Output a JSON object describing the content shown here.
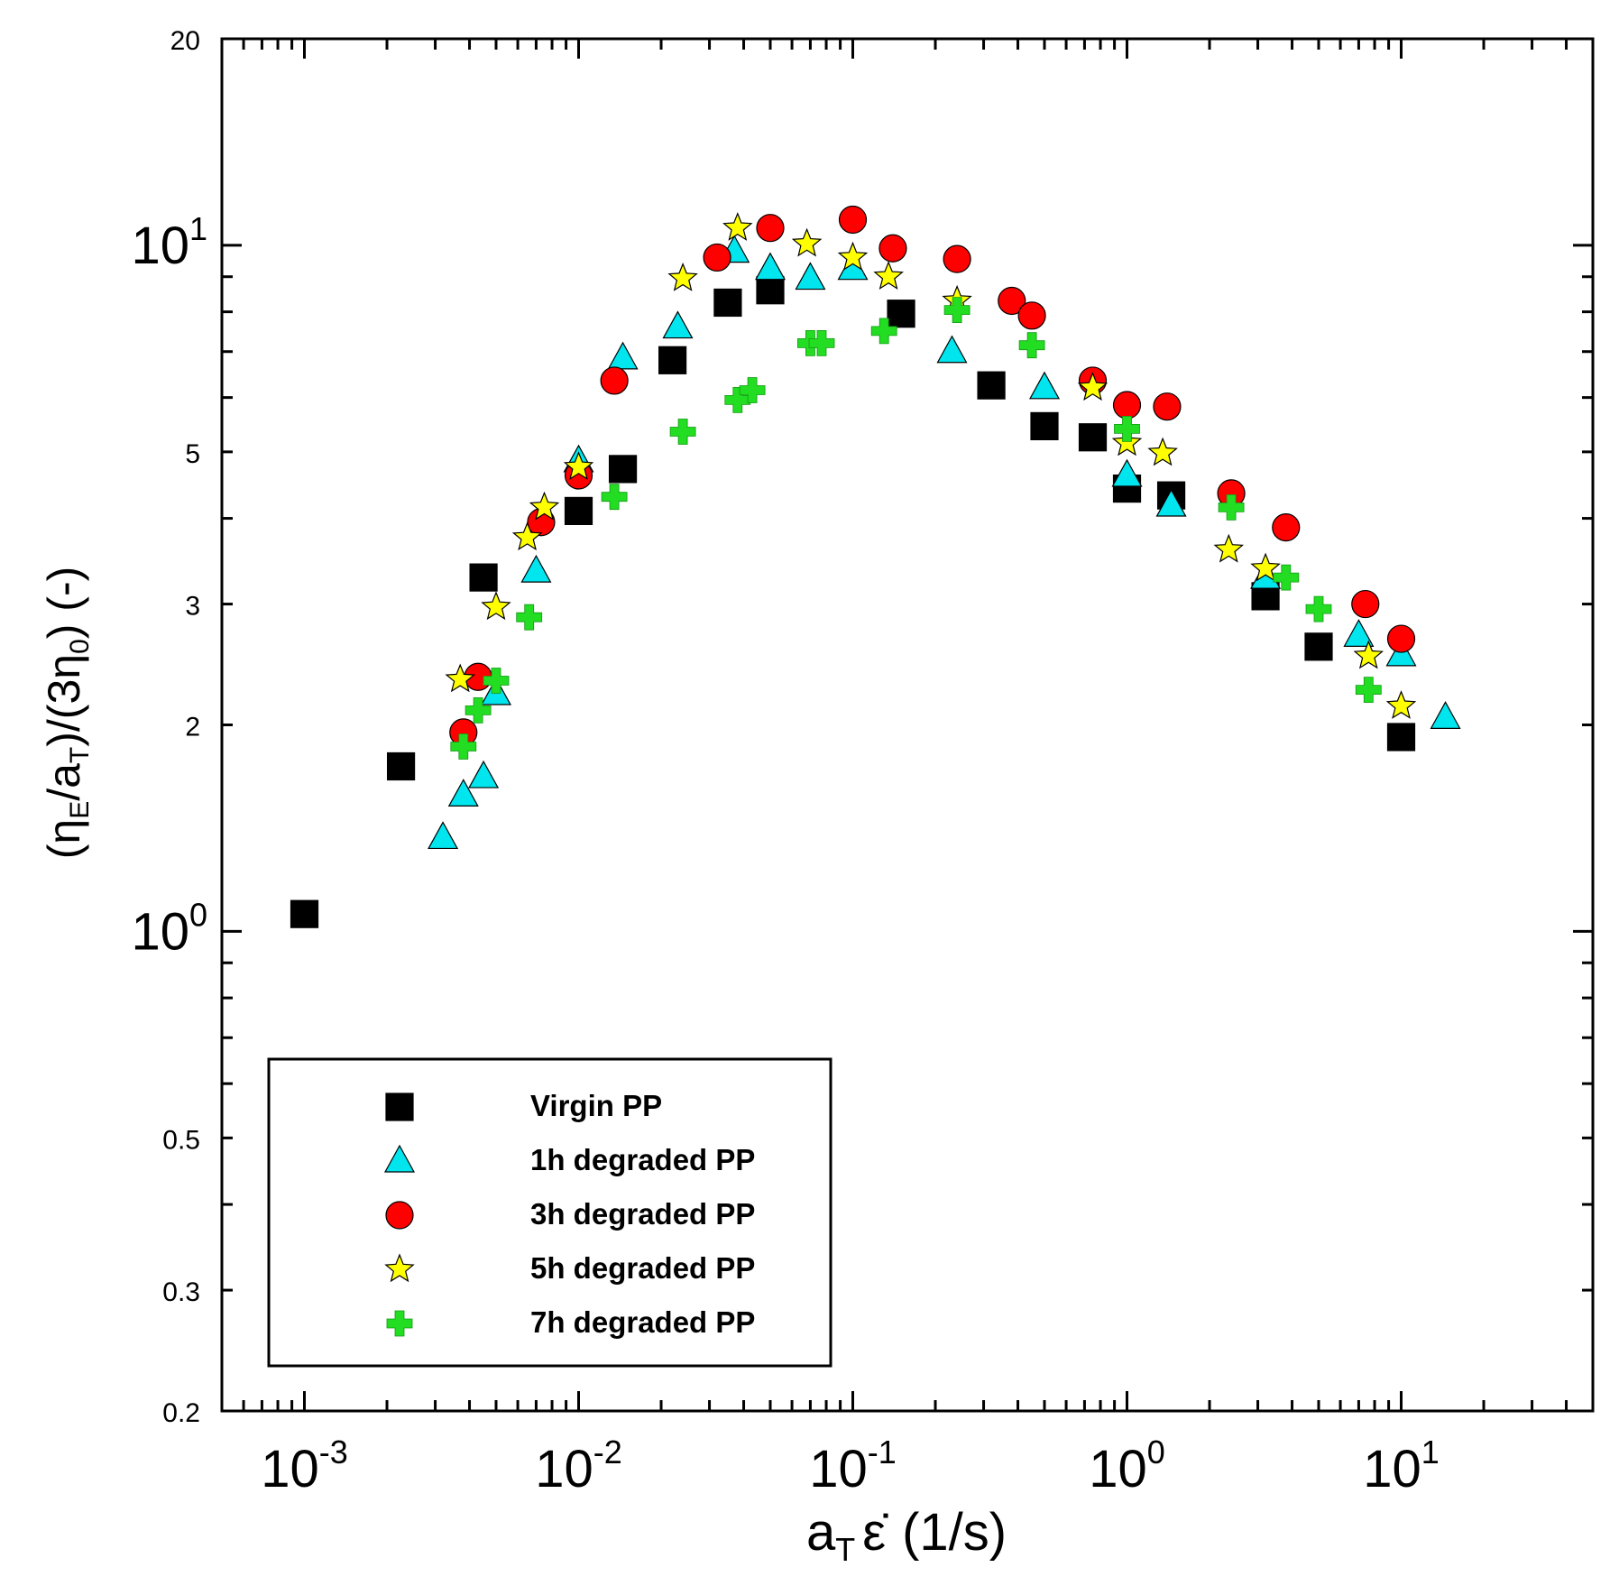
{
  "chart_data": {
    "type": "scatter",
    "title": "",
    "xscale": "log",
    "yscale": "log",
    "xlim": [
      0.0005,
      50
    ],
    "ylim": [
      0.2,
      20
    ],
    "xlabel": {
      "base": "a",
      "sub": "T",
      "symbol": "ε̇",
      "unit": "(1/s)"
    },
    "ylabel": {
      "open": "(",
      "eta1": "η",
      "sub1": "E",
      "slash": "/",
      "a": "a",
      "subT": "T",
      "mid": ")/(3",
      "eta2": "η",
      "sub0": "0",
      "close": ") (-)"
    },
    "x_ticks": [
      {
        "value": 0.001,
        "base": "10",
        "exp": "-3"
      },
      {
        "value": 0.01,
        "base": "10",
        "exp": "-2"
      },
      {
        "value": 0.1,
        "base": "10",
        "exp": "-1"
      },
      {
        "value": 1,
        "base": "10",
        "exp": "0"
      },
      {
        "value": 10,
        "base": "10",
        "exp": "1"
      }
    ],
    "y_ticks": [
      {
        "value": 0.2,
        "label": "0.2"
      },
      {
        "value": 0.3,
        "label": "0.3"
      },
      {
        "value": 0.5,
        "label": "0.5"
      },
      {
        "value": 1,
        "label": "10",
        "exp": "0"
      },
      {
        "value": 2,
        "label": "2"
      },
      {
        "value": 3,
        "label": "3"
      },
      {
        "value": 5,
        "label": "5"
      },
      {
        "value": 10,
        "label": "10",
        "exp": "1"
      },
      {
        "value": 20,
        "label": "20"
      }
    ],
    "legend_position": "bottom-left",
    "series": [
      {
        "name": "Virgin PP",
        "marker": "square",
        "color": "#000000",
        "x": [
          0.001,
          0.00225,
          0.0045,
          0.01,
          0.0145,
          0.022,
          0.035,
          0.05,
          0.15,
          0.32,
          0.5,
          0.75,
          1.0,
          1.45,
          3.2,
          5.0,
          10.0
        ],
        "y": [
          1.06,
          1.74,
          3.28,
          4.1,
          4.72,
          6.8,
          8.25,
          8.6,
          7.95,
          6.25,
          5.45,
          5.25,
          4.42,
          4.32,
          3.08,
          2.6,
          1.92
        ]
      },
      {
        "name": "1h degraded PP",
        "marker": "triangle",
        "color": "#00e5ee",
        "x": [
          0.0032,
          0.0038,
          0.0045,
          0.005,
          0.007,
          0.01,
          0.0145,
          0.023,
          0.037,
          0.05,
          0.07,
          0.1,
          0.23,
          0.5,
          1.0,
          1.45,
          3.2,
          7.0,
          10.0,
          14.5
        ],
        "y": [
          1.37,
          1.58,
          1.68,
          2.22,
          3.35,
          4.85,
          6.85,
          7.6,
          9.8,
          9.25,
          8.95,
          9.25,
          7.0,
          6.2,
          4.62,
          4.18,
          3.28,
          2.7,
          2.53,
          2.05
        ]
      },
      {
        "name": "3h degraded PP",
        "marker": "circle",
        "color": "#ff0000",
        "x": [
          0.0038,
          0.0043,
          0.0073,
          0.01,
          0.0135,
          0.032,
          0.05,
          0.1,
          0.14,
          0.24,
          0.38,
          0.45,
          0.75,
          1.0,
          1.4,
          2.4,
          3.8,
          7.4,
          10.0
        ],
        "y": [
          1.95,
          2.35,
          3.95,
          4.62,
          6.35,
          9.6,
          10.6,
          10.9,
          9.9,
          9.55,
          8.3,
          7.9,
          6.35,
          5.85,
          5.82,
          4.35,
          3.88,
          3.0,
          2.67
        ]
      },
      {
        "name": "5h degraded PP",
        "marker": "star",
        "color": "#ffff00",
        "x": [
          0.0037,
          0.005,
          0.0065,
          0.0075,
          0.01,
          0.024,
          0.038,
          0.068,
          0.1,
          0.135,
          0.24,
          0.75,
          1.0,
          1.35,
          2.35,
          3.2,
          7.6,
          10.0
        ],
        "y": [
          2.33,
          2.97,
          3.75,
          4.15,
          4.75,
          8.95,
          10.6,
          10.05,
          9.6,
          9.0,
          8.3,
          6.2,
          5.15,
          4.98,
          3.6,
          3.38,
          2.52,
          2.13
        ]
      },
      {
        "name": "7h degraded PP",
        "marker": "cross",
        "color": "#22dd22",
        "x": [
          0.0038,
          0.0043,
          0.005,
          0.0066,
          0.0135,
          0.024,
          0.038,
          0.043,
          0.07,
          0.077,
          0.13,
          0.24,
          0.45,
          1.0,
          2.4,
          3.8,
          5.0,
          7.6
        ],
        "y": [
          1.86,
          2.1,
          2.32,
          2.87,
          4.3,
          5.35,
          5.95,
          6.15,
          7.2,
          7.2,
          7.5,
          8.05,
          7.15,
          5.4,
          4.15,
          3.28,
          2.95,
          2.25
        ]
      }
    ]
  }
}
